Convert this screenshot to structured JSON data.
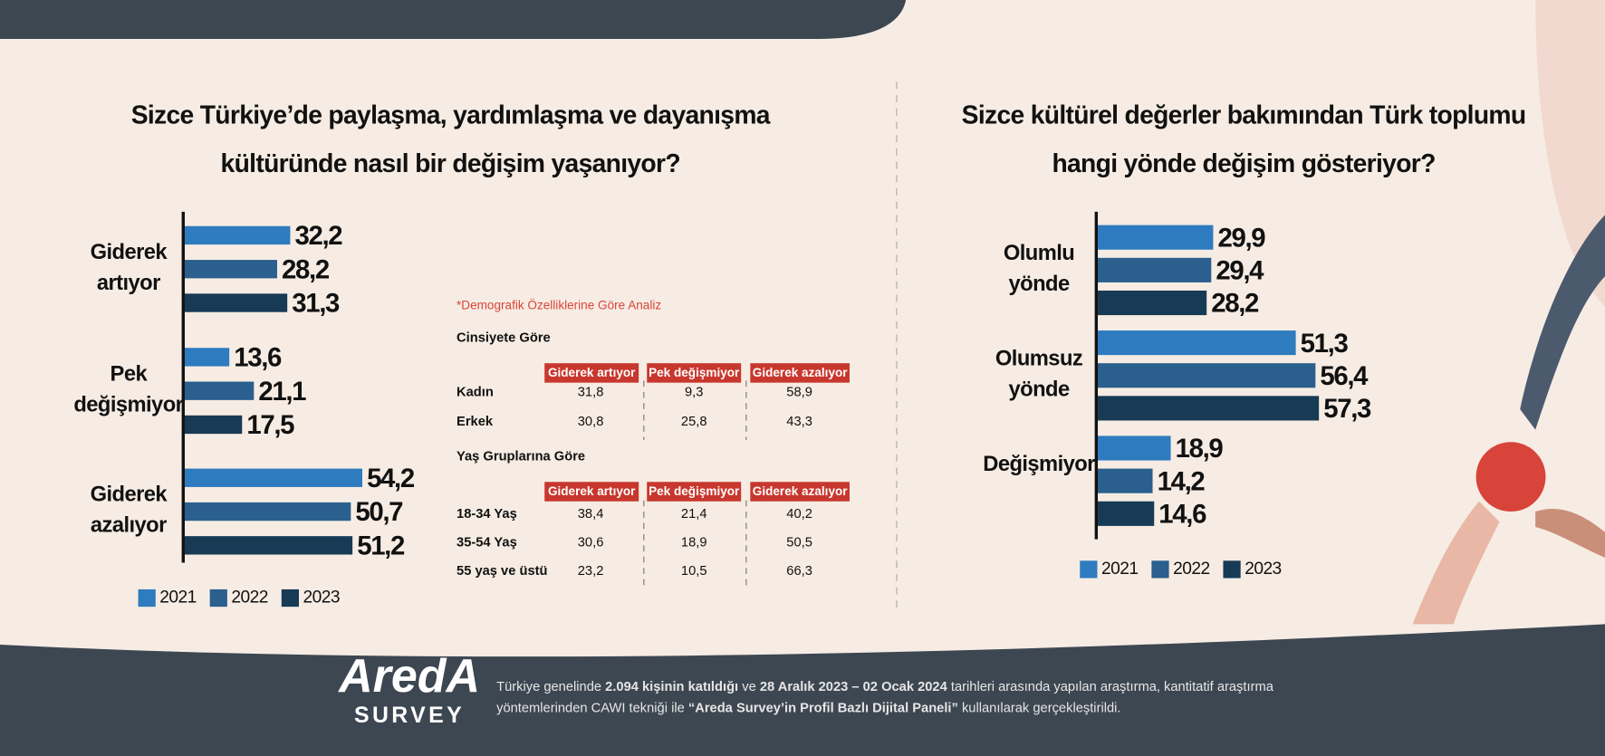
{
  "chart_data": [
    {
      "type": "bar",
      "title": "Sizce Türkiye’de paylaşma, yardımlaşma ve dayanışma kültüründe nasıl bir değişim yaşanıyor?",
      "categories": [
        "Giderek artıyor",
        "Pek değişmiyor",
        "Giderek azalıyor"
      ],
      "series": [
        {
          "name": "2021",
          "color": "#2e7bbf",
          "values": [
            32.2,
            13.6,
            54.2
          ],
          "value_labels": [
            "32,2",
            "13,6",
            "54,2"
          ]
        },
        {
          "name": "2022",
          "color": "#2a5f8e",
          "values": [
            28.2,
            21.1,
            50.7
          ],
          "value_labels": [
            "28,2",
            "21,1",
            "50,7"
          ]
        },
        {
          "name": "2023",
          "color": "#173a55",
          "values": [
            31.3,
            17.5,
            51.2
          ],
          "value_labels": [
            "31,3",
            "17,5",
            "51,2"
          ]
        }
      ]
    },
    {
      "type": "bar",
      "title": "Sizce kültürel değerler bakımından Türk toplumu hangi yönde değişim gösteriyor?",
      "categories": [
        "Olumlu yönde",
        "Olumsuz yönde",
        "Değişmiyor"
      ],
      "series": [
        {
          "name": "2021",
          "color": "#2e7bbf",
          "values": [
            29.9,
            51.3,
            18.9
          ],
          "value_labels": [
            "29,9",
            "51,3",
            "18,9"
          ]
        },
        {
          "name": "2022",
          "color": "#2a5f8e",
          "values": [
            29.4,
            56.4,
            14.2
          ],
          "value_labels": [
            "29,4",
            "56,4",
            "14,2"
          ]
        },
        {
          "name": "2023",
          "color": "#173a55",
          "values": [
            28.2,
            57.3,
            14.6
          ],
          "value_labels": [
            "28,2",
            "57,3",
            "14,6"
          ]
        }
      ]
    }
  ],
  "table": {
    "note": "*Demografik Özelliklerine Göre Analiz",
    "sections": [
      {
        "title": "Cinsiyete Göre",
        "columns": [
          "Giderek artıyor",
          "Pek değişmiyor",
          "Giderek azalıyor"
        ],
        "rows": [
          [
            "Kadın",
            "31,8",
            "9,3",
            "58,9"
          ],
          [
            "Erkek",
            "30,8",
            "25,8",
            "43,3"
          ]
        ]
      },
      {
        "title": "Yaş Gruplarına Göre",
        "columns": [
          "Giderek artıyor",
          "Pek değişmiyor",
          "Giderek azalıyor"
        ],
        "rows": [
          [
            "18-34 Yaş",
            "38,4",
            "21,4",
            "40,2"
          ],
          [
            "35-54 Yaş",
            "30,6",
            "18,9",
            "50,5"
          ],
          [
            "55 yaş ve üstü",
            "23,2",
            "10,5",
            "66,3"
          ]
        ]
      }
    ]
  },
  "footer": {
    "logo": "AredA",
    "logo_sub": "SURVEY",
    "text": [
      "Türkiye genelinde ",
      "2.094 kişinin katıldığı",
      " ve ",
      "28 Aralık 2023 – 02 Ocak 2024",
      " tarihleri arasında yapılan araştırma, kantitatif araştırma yöntemlerinden CAWI tekniği ile ",
      "“Areda Survey’in Profil Bazlı Dijital Paneli”",
      " kullanılarak gerçekleştirildi."
    ]
  }
}
